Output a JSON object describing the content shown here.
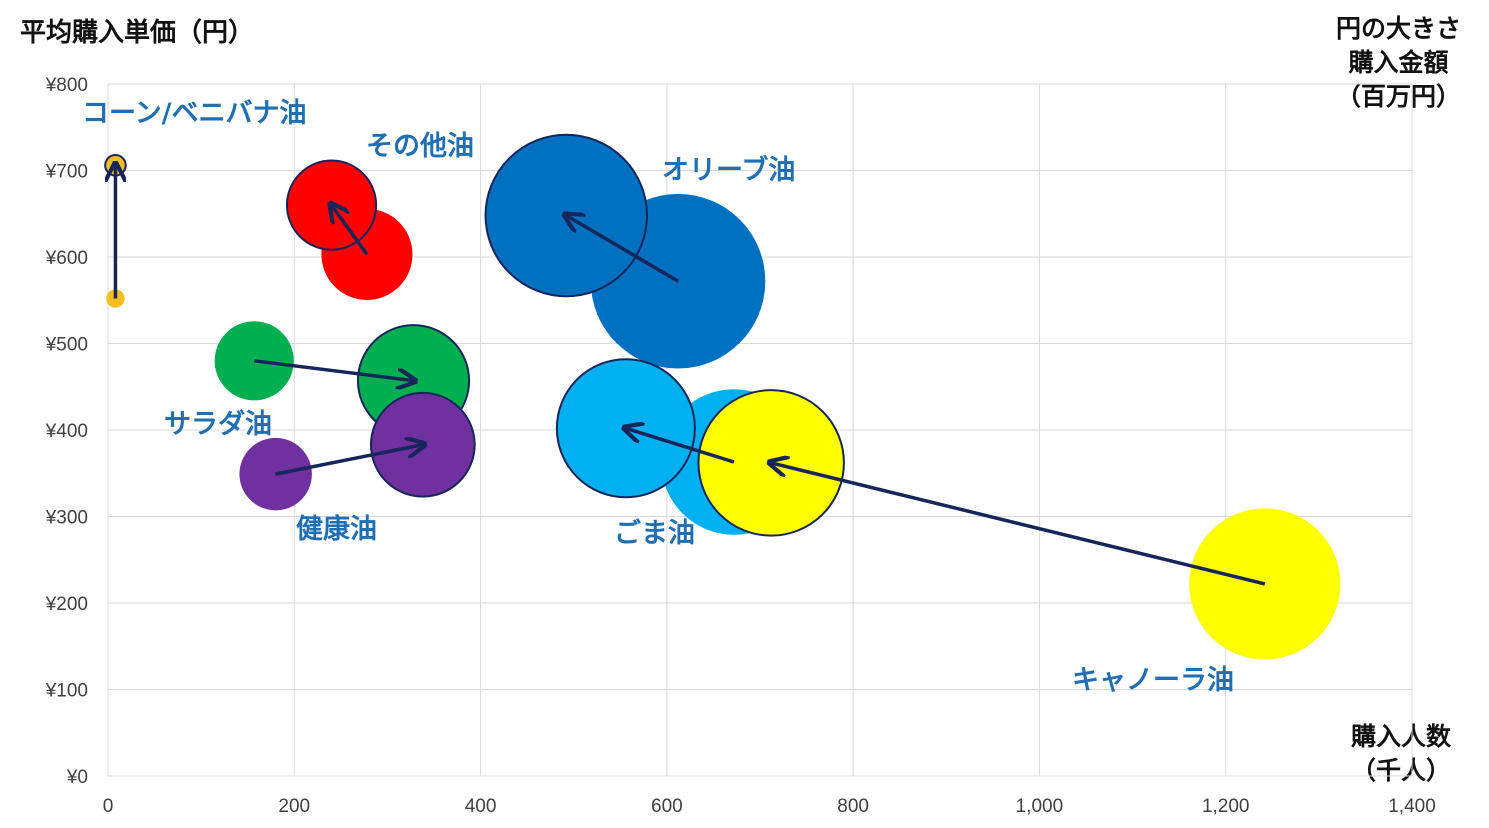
{
  "chart_data": {
    "type": "bubble",
    "y_axis_title": "平均購入単価（円）",
    "x_axis_title": [
      "購入人数",
      "（千人）"
    ],
    "size_legend_title": [
      "円の大きさ",
      "購入金額",
      "（百万円）"
    ],
    "xlim": [
      0,
      1400
    ],
    "ylim": [
      0,
      800
    ],
    "x_ticks": [
      "0",
      "200",
      "400",
      "600",
      "800",
      "1,000",
      "1,200",
      "1,400"
    ],
    "y_ticks": [
      "¥0",
      "¥100",
      "¥200",
      "¥300",
      "¥400",
      "¥500",
      "¥600",
      "¥700",
      "¥800"
    ],
    "grid": true,
    "series": [
      {
        "name": "コーン/ベニバナ油",
        "color": "#F5BD1F",
        "from": {
          "x": 8,
          "y": 552,
          "size": 4
        },
        "to": {
          "x": 8,
          "y": 706,
          "size": 5
        }
      },
      {
        "name": "その他油",
        "color": "#FF0000",
        "from": {
          "x": 278,
          "y": 603,
          "size": 98
        },
        "to": {
          "x": 240,
          "y": 660,
          "size": 94
        }
      },
      {
        "name": "オリーブ油",
        "color": "#0070C0",
        "from": {
          "x": 612,
          "y": 572,
          "size": 360
        },
        "to": {
          "x": 492,
          "y": 648,
          "size": 308
        }
      },
      {
        "name": "サラダ油",
        "color": "#00B050",
        "from": {
          "x": 157,
          "y": 480,
          "size": 74
        },
        "to": {
          "x": 328,
          "y": 457,
          "size": 146
        }
      },
      {
        "name": "健康油",
        "color": "#7030A0",
        "from": {
          "x": 180,
          "y": 349,
          "size": 62
        },
        "to": {
          "x": 338,
          "y": 383,
          "size": 127
        }
      },
      {
        "name": "キャノーラ油",
        "color": "#FFFF00",
        "from": {
          "x": 1242,
          "y": 222,
          "size": 270
        },
        "to": {
          "x": 712,
          "y": 362,
          "size": 250
        }
      },
      {
        "name": "ごま油",
        "color": "#00B0F0",
        "from": {
          "x": 672,
          "y": 363,
          "size": 250
        },
        "to": {
          "x": 556,
          "y": 402,
          "size": 225
        }
      }
    ]
  }
}
